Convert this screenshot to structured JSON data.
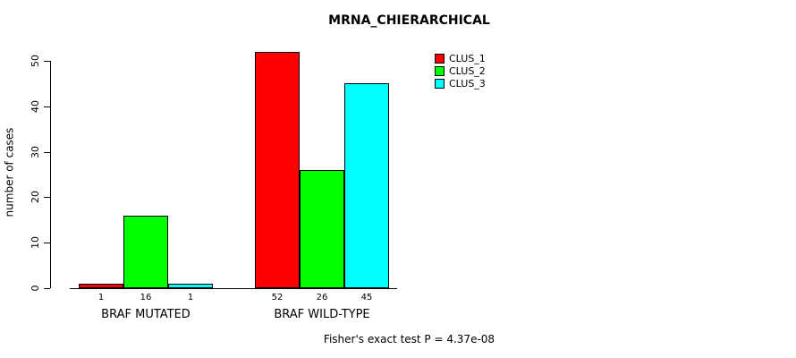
{
  "title": "MRNA_CHIERARCHICAL",
  "footer": "Fisher's exact test P = 4.37e-08",
  "y_axis": {
    "label": "number of cases",
    "ticks": [
      0,
      10,
      20,
      30,
      40,
      50
    ]
  },
  "legend": {
    "items": [
      {
        "label": "CLUS_1",
        "color": "#ff0000"
      },
      {
        "label": "CLUS_2",
        "color": "#00ff00"
      },
      {
        "label": "CLUS_3",
        "color": "#00ffff"
      }
    ]
  },
  "chart_data": {
    "type": "bar",
    "title": "MRNA_CHIERARCHICAL",
    "xlabel": "",
    "ylabel": "number of cases",
    "categories": [
      "BRAF MUTATED",
      "BRAF WILD-TYPE"
    ],
    "series": [
      {
        "name": "CLUS_1",
        "color": "#ff0000",
        "values": [
          1,
          52
        ]
      },
      {
        "name": "CLUS_2",
        "color": "#00ff00",
        "values": [
          16,
          26
        ]
      },
      {
        "name": "CLUS_3",
        "color": "#00ffff",
        "values": [
          1,
          45
        ]
      }
    ],
    "yticks": [
      0,
      10,
      20,
      30,
      40,
      50
    ],
    "ylim": [
      0,
      52
    ],
    "grid": false,
    "legend_position": "top-right",
    "bar_value_labels": [
      [
        1,
        16,
        1
      ],
      [
        52,
        26,
        45
      ]
    ],
    "annotation": "Fisher's exact test P = 4.37e-08"
  }
}
